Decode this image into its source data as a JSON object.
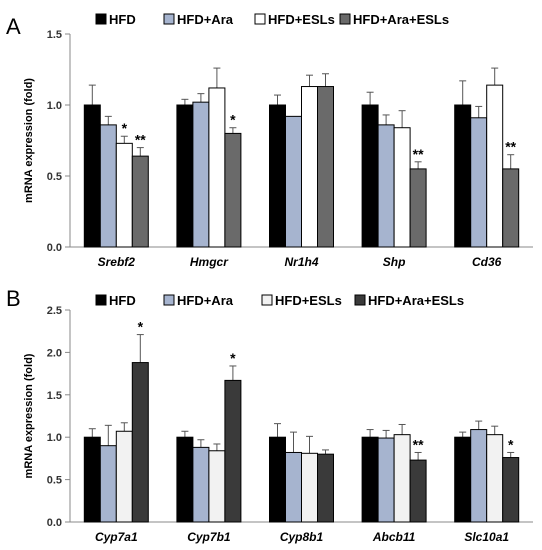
{
  "colors": {
    "HFD": "#000000",
    "HFD+Ara": "#a6b4cf",
    "HFD+ESLs": "#ffffff",
    "HFD+Ara+ESLs_A": "#6a6a6a",
    "HFD+Ara+ESLs_B": "#3a3a3a",
    "panelB_HFD+ESLs": "#f2f2f2"
  },
  "chart_data": [
    {
      "panel": "A",
      "type": "bar",
      "ylabel": "mRNA expression (fold)",
      "ylim": [
        0,
        1.5
      ],
      "yticks": [
        "0.0",
        "0.5",
        "1.0",
        "1.5"
      ],
      "legend_position": "top",
      "categories": [
        "Srebf2",
        "Hmgcr",
        "Nr1h4",
        "Shp",
        "Cd36"
      ],
      "series": [
        {
          "name": "HFD",
          "values": [
            1.0,
            1.0,
            1.0,
            1.0,
            1.0
          ],
          "errors": [
            0.14,
            0.04,
            0.07,
            0.09,
            0.17
          ],
          "sig": [
            "",
            "",
            "",
            "",
            ""
          ]
        },
        {
          "name": "HFD+Ara",
          "values": [
            0.86,
            1.02,
            0.92,
            0.86,
            0.91
          ],
          "errors": [
            0.06,
            0.06,
            0.0,
            0.07,
            0.08
          ],
          "sig": [
            "",
            "",
            "",
            "",
            ""
          ]
        },
        {
          "name": "HFD+ESLs",
          "values": [
            0.73,
            1.12,
            1.13,
            0.84,
            1.14
          ],
          "errors": [
            0.05,
            0.14,
            0.08,
            0.12,
            0.12
          ],
          "sig": [
            "*",
            "",
            "",
            "",
            ""
          ]
        },
        {
          "name": "HFD+Ara+ESLs",
          "values": [
            0.64,
            0.8,
            1.13,
            0.55,
            0.55
          ],
          "errors": [
            0.06,
            0.04,
            0.09,
            0.05,
            0.1
          ],
          "sig": [
            "**",
            "*",
            "",
            "**",
            "**"
          ]
        }
      ]
    },
    {
      "panel": "B",
      "type": "bar",
      "ylabel": "mRNA expression (fold)",
      "ylim": [
        0,
        2.5
      ],
      "yticks": [
        "0.0",
        "0.5",
        "1.0",
        "1.5",
        "2.0",
        "2.5"
      ],
      "legend_position": "top",
      "categories": [
        "Cyp7a1",
        "Cyp7b1",
        "Cyp8b1",
        "Abcb11",
        "Slc10a1"
      ],
      "series": [
        {
          "name": "HFD",
          "values": [
            1.0,
            1.0,
            1.0,
            1.0,
            1.0
          ],
          "errors": [
            0.1,
            0.07,
            0.16,
            0.09,
            0.06
          ],
          "sig": [
            "",
            "",
            "",
            "",
            ""
          ]
        },
        {
          "name": "HFD+Ara",
          "values": [
            0.9,
            0.88,
            0.82,
            0.99,
            1.09
          ],
          "errors": [
            0.24,
            0.09,
            0.24,
            0.09,
            0.1
          ],
          "sig": [
            "",
            "",
            "",
            "",
            ""
          ]
        },
        {
          "name": "HFD+ESLs",
          "values": [
            1.07,
            0.84,
            0.81,
            1.03,
            1.03
          ],
          "errors": [
            0.1,
            0.08,
            0.2,
            0.12,
            0.1
          ],
          "sig": [
            "",
            "",
            "",
            "",
            ""
          ]
        },
        {
          "name": "HFD+Ara+ESLs",
          "values": [
            1.88,
            1.67,
            0.8,
            0.73,
            0.76
          ],
          "errors": [
            0.33,
            0.17,
            0.05,
            0.09,
            0.06
          ],
          "sig": [
            "*",
            "*",
            "",
            "**",
            "*"
          ]
        }
      ]
    }
  ]
}
